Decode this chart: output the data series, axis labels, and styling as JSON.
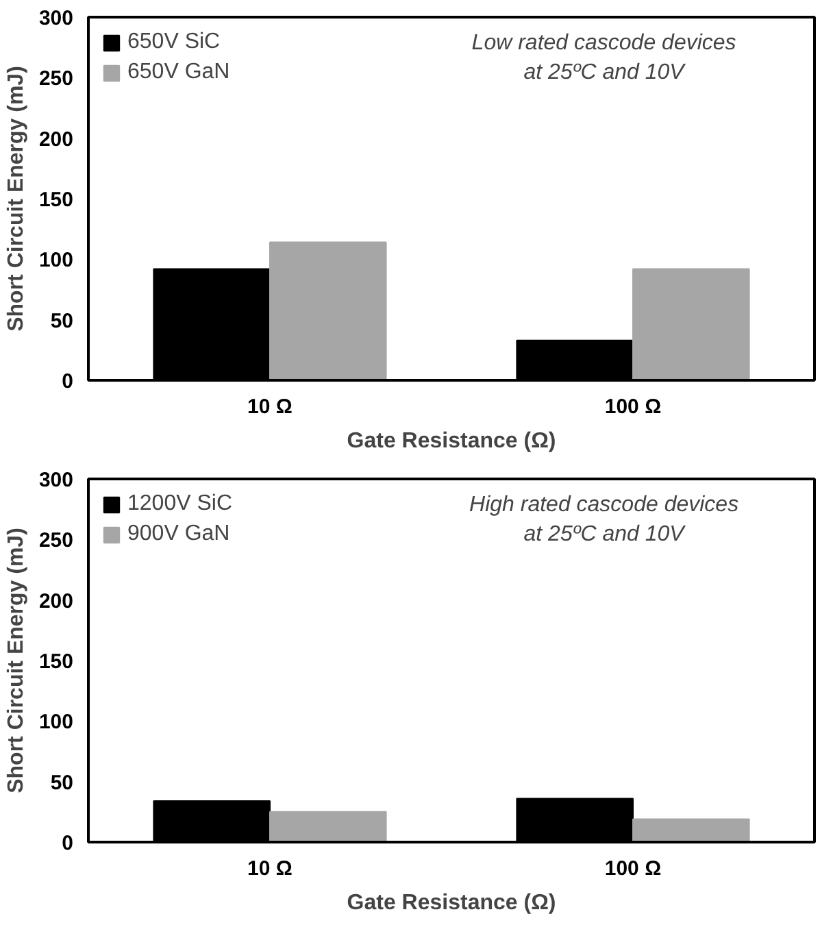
{
  "chart_data": [
    {
      "type": "bar",
      "categories": [
        "10 Ω",
        "100 Ω"
      ],
      "xlabel": "Gate Resistance (Ω)",
      "ylabel": "Short Circuit Energy (mJ)",
      "ylim": [
        0,
        300
      ],
      "yticks": [
        0,
        50,
        100,
        150,
        200,
        250,
        300
      ],
      "grid": false,
      "legend": "top left",
      "annotations": [
        "Low rated cascode devices\nat 25ºC and 10V"
      ],
      "series": [
        {
          "name": "650V SiC",
          "color": "#000000",
          "values": [
            92,
            33
          ]
        },
        {
          "name": "650V GaN",
          "color": "#a6a6a6",
          "values": [
            114,
            92
          ]
        }
      ]
    },
    {
      "type": "bar",
      "categories": [
        "10 Ω",
        "100 Ω"
      ],
      "xlabel": "Gate Resistance (Ω)",
      "ylabel": "Short Circuit Energy (mJ)",
      "ylim": [
        0,
        300
      ],
      "yticks": [
        0,
        50,
        100,
        150,
        200,
        250,
        300
      ],
      "grid": false,
      "legend": "top left",
      "annotations": [
        "High rated cascode devices\nat 25ºC and 10V"
      ],
      "series": [
        {
          "name": "1200V SiC",
          "color": "#000000",
          "values": [
            34,
            36
          ]
        },
        {
          "name": "900V GaN",
          "color": "#a6a6a6",
          "values": [
            25,
            19
          ]
        }
      ]
    }
  ]
}
